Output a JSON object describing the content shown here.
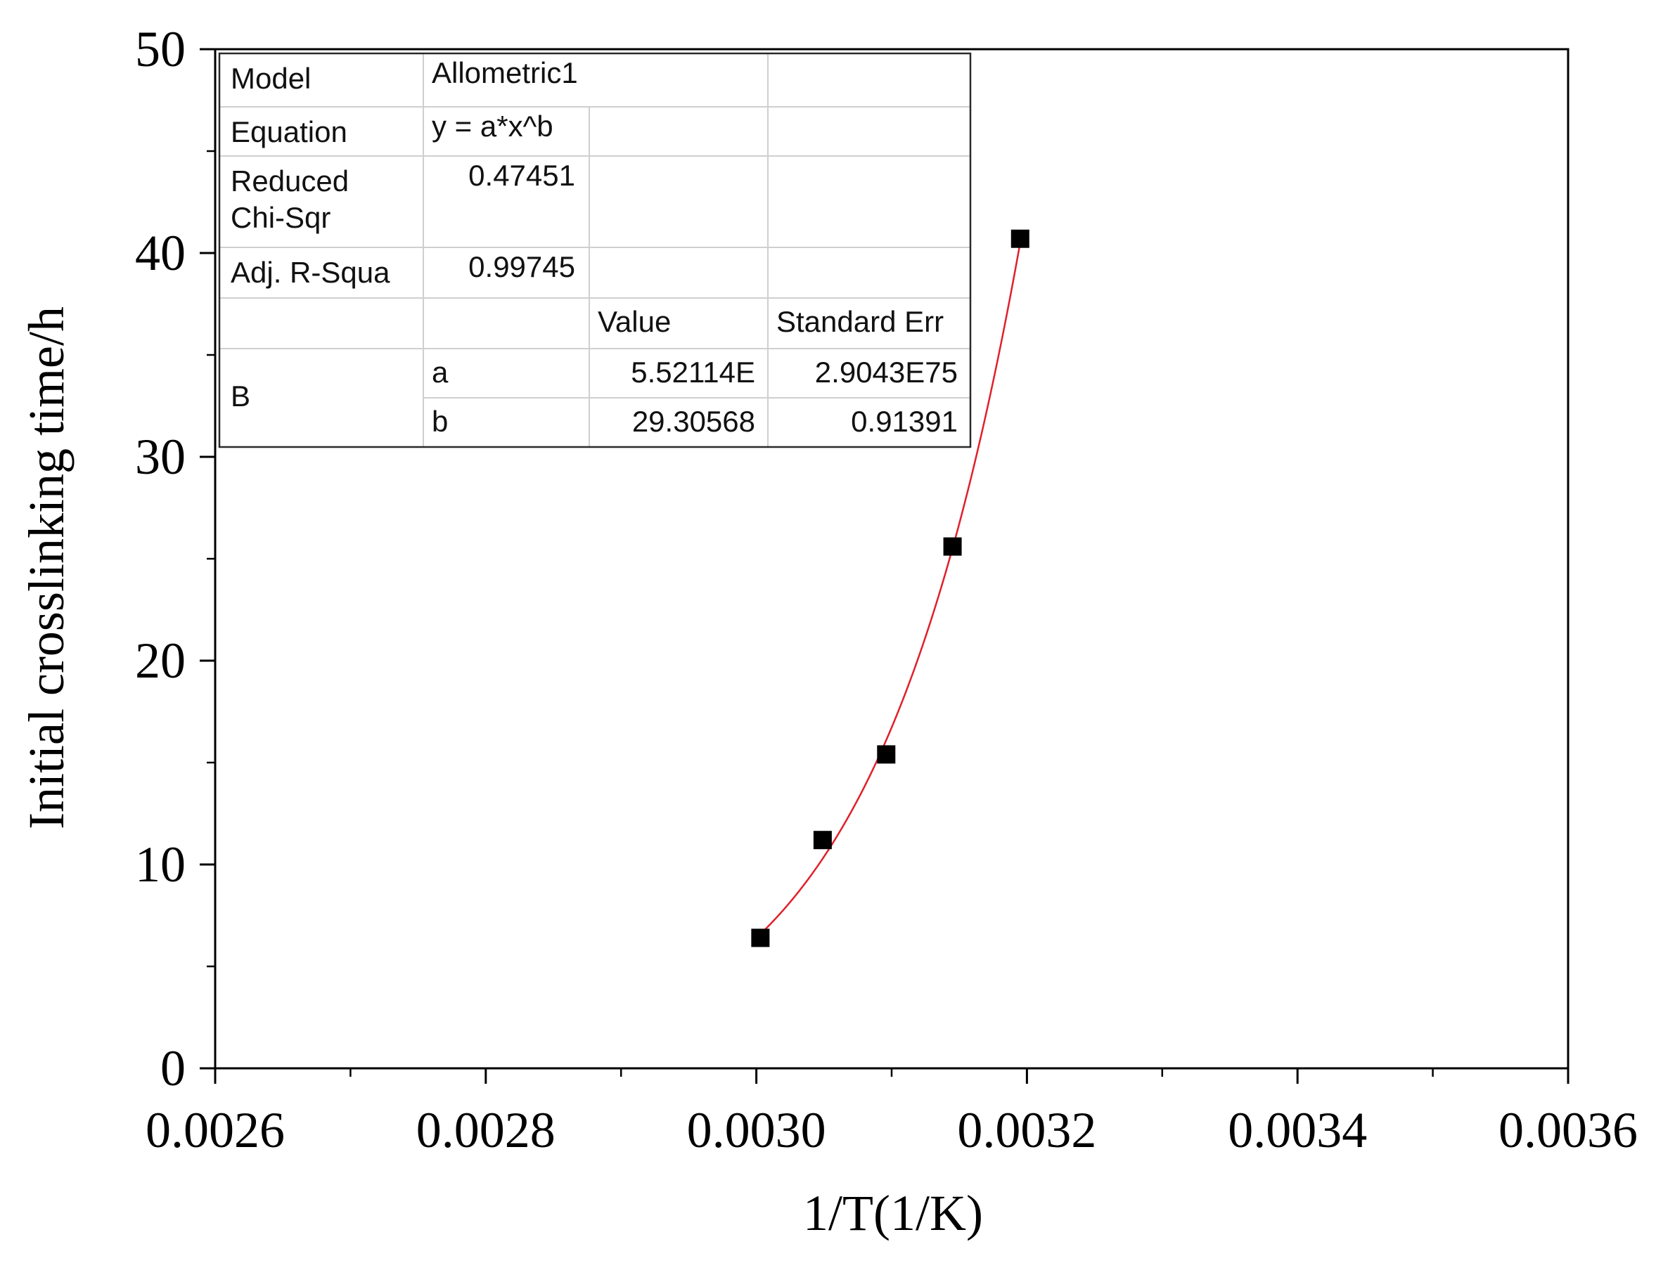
{
  "chart_data": {
    "type": "scatter",
    "xlabel": "1/T(1/K)",
    "ylabel": "Initial crosslinking time/h",
    "xlim": [
      0.0026,
      0.0036
    ],
    "ylim": [
      0,
      50
    ],
    "x_ticks": [
      "0.0026",
      "0.0028",
      "0.0030",
      "0.0032",
      "0.0034",
      "0.0036"
    ],
    "y_ticks": [
      "0",
      "10",
      "20",
      "30",
      "40",
      "50"
    ],
    "grid": false,
    "series": [
      {
        "type": "scatter",
        "color": "#000000",
        "marker": "square",
        "points": [
          {
            "x": 0.003003,
            "y": 6.4
          },
          {
            "x": 0.003049,
            "y": 11.2
          },
          {
            "x": 0.003096,
            "y": 15.4
          },
          {
            "x": 0.003145,
            "y": 25.6
          },
          {
            "x": 0.003195,
            "y": 40.7
          }
        ]
      },
      {
        "type": "line",
        "color": "#e0202a",
        "fit": {
          "model": "allometric",
          "equation": "y = a*x^b",
          "x0": 0.003195,
          "y0": 40.5,
          "b": 29.30568
        },
        "x_range": [
          0.003003,
          0.003195
        ]
      }
    ],
    "fit_table": {
      "rows": [
        [
          "Model",
          "Allometric1",
          ""
        ],
        [
          "Equation",
          "y = a*x^b",
          ""
        ],
        [
          "Reduced\nChi-Sqr",
          "0.47451",
          ""
        ],
        [
          "Adj. R-Squa",
          "0.99745",
          ""
        ]
      ],
      "param_header": [
        "",
        "",
        "Value",
        "Standard Err"
      ],
      "param_group": "B",
      "params": [
        [
          "a",
          "5.52114E",
          "2.9043E75"
        ],
        [
          "b",
          "29.30568",
          "0.91391"
        ]
      ]
    }
  }
}
